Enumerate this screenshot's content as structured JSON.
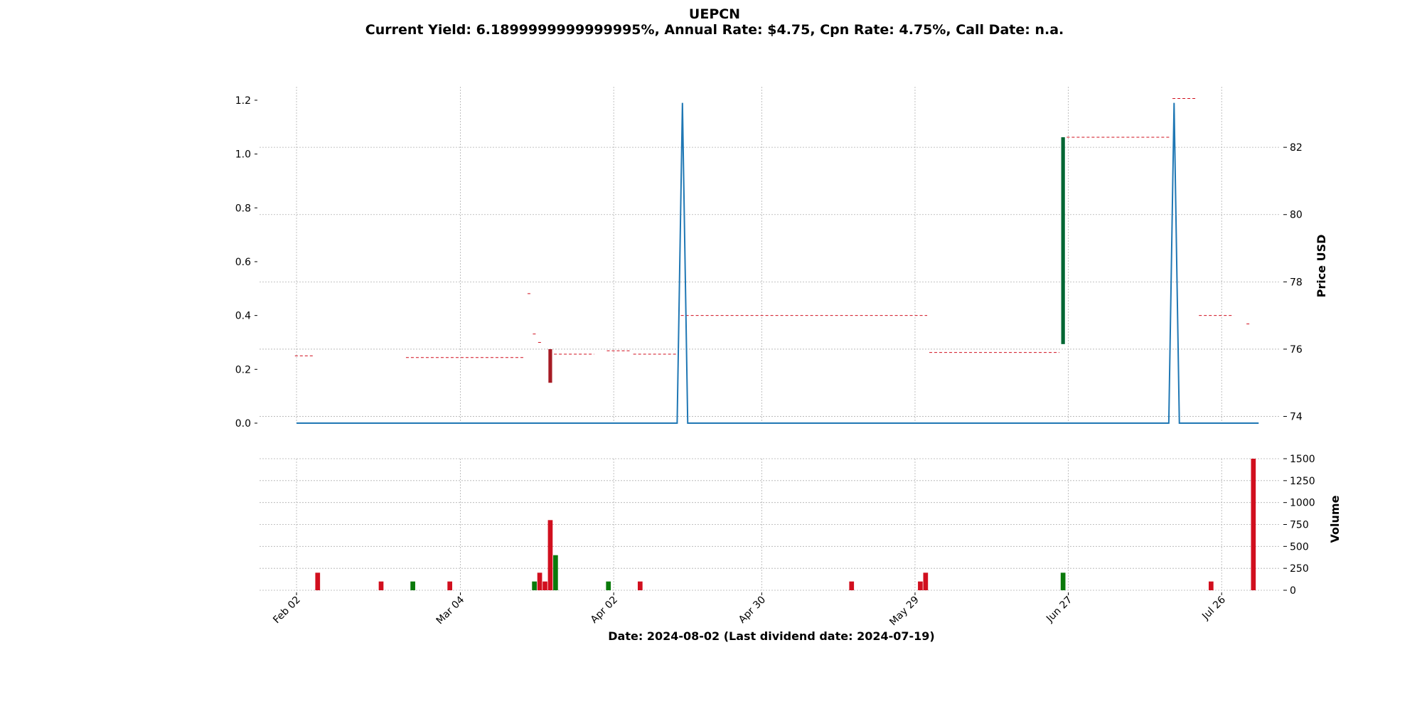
{
  "title": "UEPCN",
  "subtitle": "Current Yield: 6.1899999999999995%, Annual Rate: $4.75, Cpn Rate: 4.75%, Call Date: n.a.",
  "xlabel": "Date: 2024-08-02   (Last dividend date: 2024-07-19)",
  "colors": {
    "up": "#0a7a0a",
    "down": "#d10f1e",
    "price_down_candle": "#a61b24",
    "price_up_candle": "#006633",
    "dividend_line": "#1f77b4",
    "grid": "#b0b0b0"
  },
  "chart_data": [
    {
      "type": "line",
      "panel": "price",
      "name": "dividend",
      "left_axis": {
        "range": [
          -0.0,
          1.25
        ],
        "ticks": [
          "0.0",
          "0.2",
          "0.4",
          "0.6",
          "0.8",
          "1.0",
          "1.2"
        ]
      },
      "x_range": [
        "2024-01-26",
        "2024-08-06"
      ],
      "x_ticks": [
        "Feb 02",
        "Mar 04",
        "Apr 02",
        "Apr 30",
        "May 29",
        "Jun 27",
        "Jul 26"
      ],
      "x_tick_dates": [
        "2024-02-02",
        "2024-03-04",
        "2024-04-02",
        "2024-04-30",
        "2024-05-29",
        "2024-06-27",
        "2024-07-26"
      ],
      "points": [
        {
          "x": "2024-02-02",
          "y": 0.0
        },
        {
          "x": "2024-04-14",
          "y": 0.0
        },
        {
          "x": "2024-04-15",
          "y": 1.19
        },
        {
          "x": "2024-04-16",
          "y": 0.0
        },
        {
          "x": "2024-07-16",
          "y": 0.0
        },
        {
          "x": "2024-07-17",
          "y": 1.19
        },
        {
          "x": "2024-07-18",
          "y": 0.0
        },
        {
          "x": "2024-08-02",
          "y": 0.0
        }
      ]
    },
    {
      "type": "candlestick",
      "panel": "price",
      "ylabel": "Price USD",
      "right_axis": {
        "range": [
          73.8,
          83.8
        ],
        "ticks": [
          "74",
          "76",
          "78",
          "80",
          "82"
        ]
      },
      "segments": [
        {
          "start": "2024-02-02",
          "end": "2024-02-05",
          "price": 75.8
        },
        {
          "start": "2024-02-23",
          "end": "2024-03-16",
          "price": 75.75
        },
        {
          "start": "2024-03-17",
          "end": "2024-03-17",
          "price": 77.65
        },
        {
          "start": "2024-03-18",
          "end": "2024-03-18",
          "price": 76.45
        },
        {
          "start": "2024-03-19",
          "end": "2024-03-19",
          "price": 76.2
        },
        {
          "start": "2024-03-22",
          "end": "2024-03-29",
          "price": 75.85
        },
        {
          "start": "2024-04-01",
          "end": "2024-04-05",
          "price": 75.95
        },
        {
          "start": "2024-04-06",
          "end": "2024-04-14",
          "price": 75.85
        },
        {
          "start": "2024-04-15",
          "end": "2024-05-31",
          "price": 77.0
        },
        {
          "start": "2024-06-01",
          "end": "2024-06-25",
          "price": 75.9
        },
        {
          "start": "2024-06-27",
          "end": "2024-07-16",
          "price": 82.3
        },
        {
          "start": "2024-07-17",
          "end": "2024-07-21",
          "price": 83.45
        },
        {
          "start": "2024-07-22",
          "end": "2024-07-28",
          "price": 77.0
        },
        {
          "start": "2024-07-31",
          "end": "2024-07-31",
          "price": 76.75
        }
      ],
      "candles": [
        {
          "date": "2024-03-21",
          "open": 76.0,
          "close": 75.0,
          "direction": "down"
        },
        {
          "date": "2024-06-26",
          "open": 76.15,
          "close": 82.3,
          "direction": "up"
        }
      ]
    },
    {
      "type": "bar",
      "panel": "volume",
      "ylabel": "Volume",
      "right_axis": {
        "range": [
          0,
          1500
        ],
        "ticks": [
          "0",
          "250",
          "500",
          "750",
          "1000",
          "1250",
          "1500"
        ]
      },
      "bars": [
        {
          "date": "2024-02-06",
          "value": 200,
          "direction": "down"
        },
        {
          "date": "2024-02-18",
          "value": 100,
          "direction": "down"
        },
        {
          "date": "2024-02-24",
          "value": 100,
          "direction": "up"
        },
        {
          "date": "2024-03-02",
          "value": 100,
          "direction": "down"
        },
        {
          "date": "2024-03-18",
          "value": 100,
          "direction": "up"
        },
        {
          "date": "2024-03-19",
          "value": 200,
          "direction": "down"
        },
        {
          "date": "2024-03-20",
          "value": 100,
          "direction": "down"
        },
        {
          "date": "2024-03-21",
          "value": 800,
          "direction": "down"
        },
        {
          "date": "2024-03-22",
          "value": 400,
          "direction": "up"
        },
        {
          "date": "2024-04-01",
          "value": 100,
          "direction": "up"
        },
        {
          "date": "2024-04-07",
          "value": 100,
          "direction": "down"
        },
        {
          "date": "2024-05-17",
          "value": 100,
          "direction": "down"
        },
        {
          "date": "2024-05-30",
          "value": 100,
          "direction": "down"
        },
        {
          "date": "2024-05-31",
          "value": 200,
          "direction": "down"
        },
        {
          "date": "2024-06-26",
          "value": 200,
          "direction": "up"
        },
        {
          "date": "2024-07-24",
          "value": 100,
          "direction": "down"
        },
        {
          "date": "2024-08-01",
          "value": 1500,
          "direction": "down"
        }
      ]
    }
  ]
}
